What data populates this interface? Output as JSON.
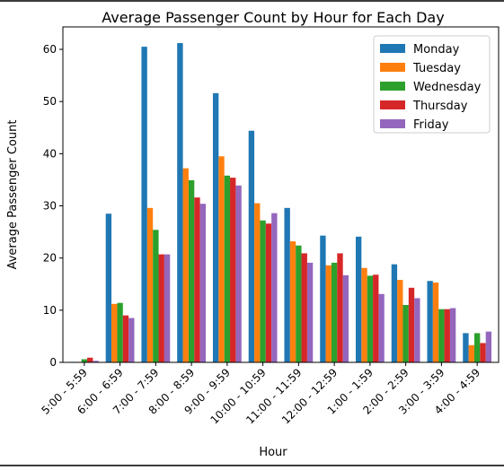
{
  "chart_data": {
    "type": "bar",
    "title": "Average Passenger Count by Hour for Each Day",
    "xlabel": "Hour",
    "ylabel": "Average Passenger Count",
    "ylim": [
      0,
      64.3
    ],
    "yticks": [
      0,
      10,
      20,
      30,
      40,
      50,
      60
    ],
    "legend_position": "top-right",
    "categories": [
      "5:00 - 5:59",
      "6:00 - 6:59",
      "7:00 - 7:59",
      "8:00 - 8:59",
      "9:00 - 9:59",
      "10:00 - 10:59",
      "11:00 - 11:59",
      "12:00 - 12:59",
      "1:00 - 1:59",
      "2:00 - 2:59",
      "3:00 - 3:59",
      "4:00 - 4:59"
    ],
    "series": [
      {
        "name": "Monday",
        "color": "#1f77b4",
        "values": [
          0.1,
          28.5,
          60.5,
          61.2,
          51.6,
          44.4,
          29.6,
          24.3,
          24.1,
          18.8,
          15.6,
          5.6
        ]
      },
      {
        "name": "Tuesday",
        "color": "#ff7f0e",
        "values": [
          0.1,
          11.2,
          29.6,
          37.2,
          39.5,
          30.5,
          23.2,
          18.6,
          18.1,
          15.8,
          15.3,
          3.3
        ]
      },
      {
        "name": "Wednesday",
        "color": "#2ca02c",
        "values": [
          0.6,
          11.4,
          25.4,
          34.9,
          35.8,
          27.2,
          22.4,
          19.1,
          16.6,
          11.0,
          10.2,
          5.6
        ]
      },
      {
        "name": "Thursday",
        "color": "#d62728",
        "values": [
          0.9,
          9.0,
          20.7,
          31.6,
          35.4,
          26.6,
          20.9,
          20.9,
          16.8,
          14.3,
          10.2,
          3.7
        ]
      },
      {
        "name": "Friday",
        "color": "#9467bd",
        "values": [
          0.3,
          8.5,
          20.7,
          30.4,
          33.9,
          28.6,
          19.1,
          16.7,
          13.1,
          12.3,
          10.4,
          5.9
        ]
      }
    ]
  }
}
